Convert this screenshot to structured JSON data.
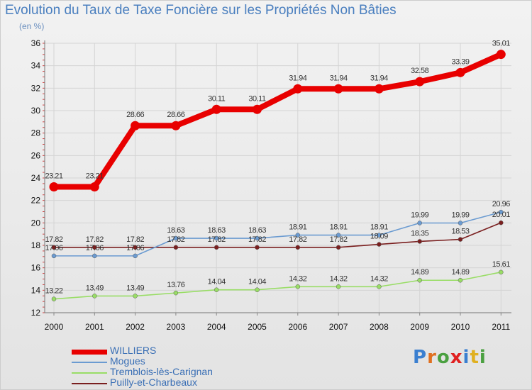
{
  "title": "Evolution du Taux de Taxe Foncière sur les Propriétés Non Bâties",
  "unit_label": "(en %)",
  "logo_text": "Proxiti",
  "chart_data": {
    "type": "line",
    "title": "Evolution du Taux de Taxe Foncière sur les Propriétés Non Bâties",
    "ylabel": "(en %)",
    "xlabel": "",
    "x": [
      "2000",
      "2001",
      "2002",
      "2003",
      "2004",
      "2005",
      "2006",
      "2007",
      "2008",
      "2009",
      "2010",
      "2011"
    ],
    "ylim": [
      12,
      36
    ],
    "yticks": [
      12,
      14,
      16,
      18,
      20,
      22,
      24,
      26,
      28,
      30,
      32,
      34,
      36
    ],
    "grid": true,
    "legend_position": "bottom-left",
    "series": [
      {
        "name": "WILLIERS",
        "color": "#e80000",
        "values": [
          23.21,
          23.21,
          28.66,
          28.66,
          30.11,
          30.11,
          31.94,
          31.94,
          31.94,
          32.58,
          33.39,
          35.01
        ],
        "labels": [
          "23.21",
          "23.21",
          "28.66",
          "28.66",
          "30.11",
          "30.11",
          "31.94",
          "31.94",
          "31.94",
          "32.58",
          "33.39",
          "35.01"
        ]
      },
      {
        "name": "Mogues",
        "color": "#6b9bd1",
        "values": [
          17.06,
          17.06,
          17.06,
          18.63,
          18.63,
          18.63,
          18.91,
          18.91,
          18.91,
          19.99,
          19.99,
          20.96
        ],
        "labels": [
          "17.06",
          "17.06",
          "17.06",
          "18.63",
          "18.63",
          "18.63",
          "18.91",
          "18.91",
          "18.91",
          "19.99",
          "19.99",
          "20.96"
        ]
      },
      {
        "name": "Tremblois-lès-Carignan",
        "color": "#99dd66",
        "values": [
          13.22,
          13.49,
          13.49,
          13.76,
          14.04,
          14.04,
          14.32,
          14.32,
          14.32,
          14.89,
          14.89,
          15.61
        ],
        "labels": [
          "13.22",
          "13.49",
          "13.49",
          "13.76",
          "14.04",
          "14.04",
          "14.32",
          "14.32",
          "14.32",
          "14.89",
          "14.89",
          "15.61"
        ]
      },
      {
        "name": "Puilly-et-Charbeaux",
        "color": "#7a1f1f",
        "values": [
          17.82,
          17.82,
          17.82,
          17.82,
          17.82,
          17.82,
          17.82,
          17.82,
          18.09,
          18.35,
          18.53,
          20.01
        ],
        "labels": [
          "17.82",
          "17.82",
          "17.82",
          "17.82",
          "17.82",
          "17.82",
          "17.82",
          "17.82",
          "18.09",
          "18.35",
          "18.53",
          "20.01"
        ]
      }
    ]
  }
}
